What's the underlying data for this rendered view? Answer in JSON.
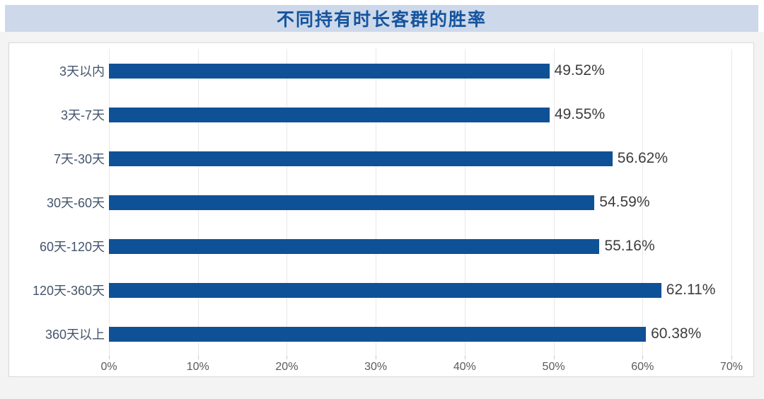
{
  "title_bar": {
    "title": "不同持有时长客群的胜率",
    "bg_color": "#cdd9ea",
    "text_color": "#16549e"
  },
  "chart_data": {
    "type": "bar",
    "orientation": "horizontal",
    "title": "不同持有时长客群的胜率",
    "categories": [
      "3天以内",
      "3天-7天",
      "7天-30天",
      "30天-60天",
      "60天-120天",
      "120天-360天",
      "360天以上"
    ],
    "values": [
      49.52,
      49.55,
      56.62,
      54.59,
      55.16,
      62.11,
      60.38
    ],
    "value_labels": [
      "49.52%",
      "49.55%",
      "56.62%",
      "54.59%",
      "55.16%",
      "62.11%",
      "60.38%"
    ],
    "xlabel": "",
    "ylabel": "",
    "xlim": [
      0,
      70
    ],
    "x_tick_values": [
      0,
      10,
      20,
      30,
      40,
      50,
      60,
      70
    ],
    "x_tick_labels": [
      "0%",
      "10%",
      "20%",
      "30%",
      "40%",
      "50%",
      "60%",
      "70%"
    ],
    "grid": "vertical-only",
    "legend": "none",
    "bar_color": "#0f5196",
    "category_label_color": "#44546c",
    "value_label_color": "#3d3d3d",
    "tick_label_color": "#5a5a5a",
    "gridline_color": "#e8e8e8"
  }
}
